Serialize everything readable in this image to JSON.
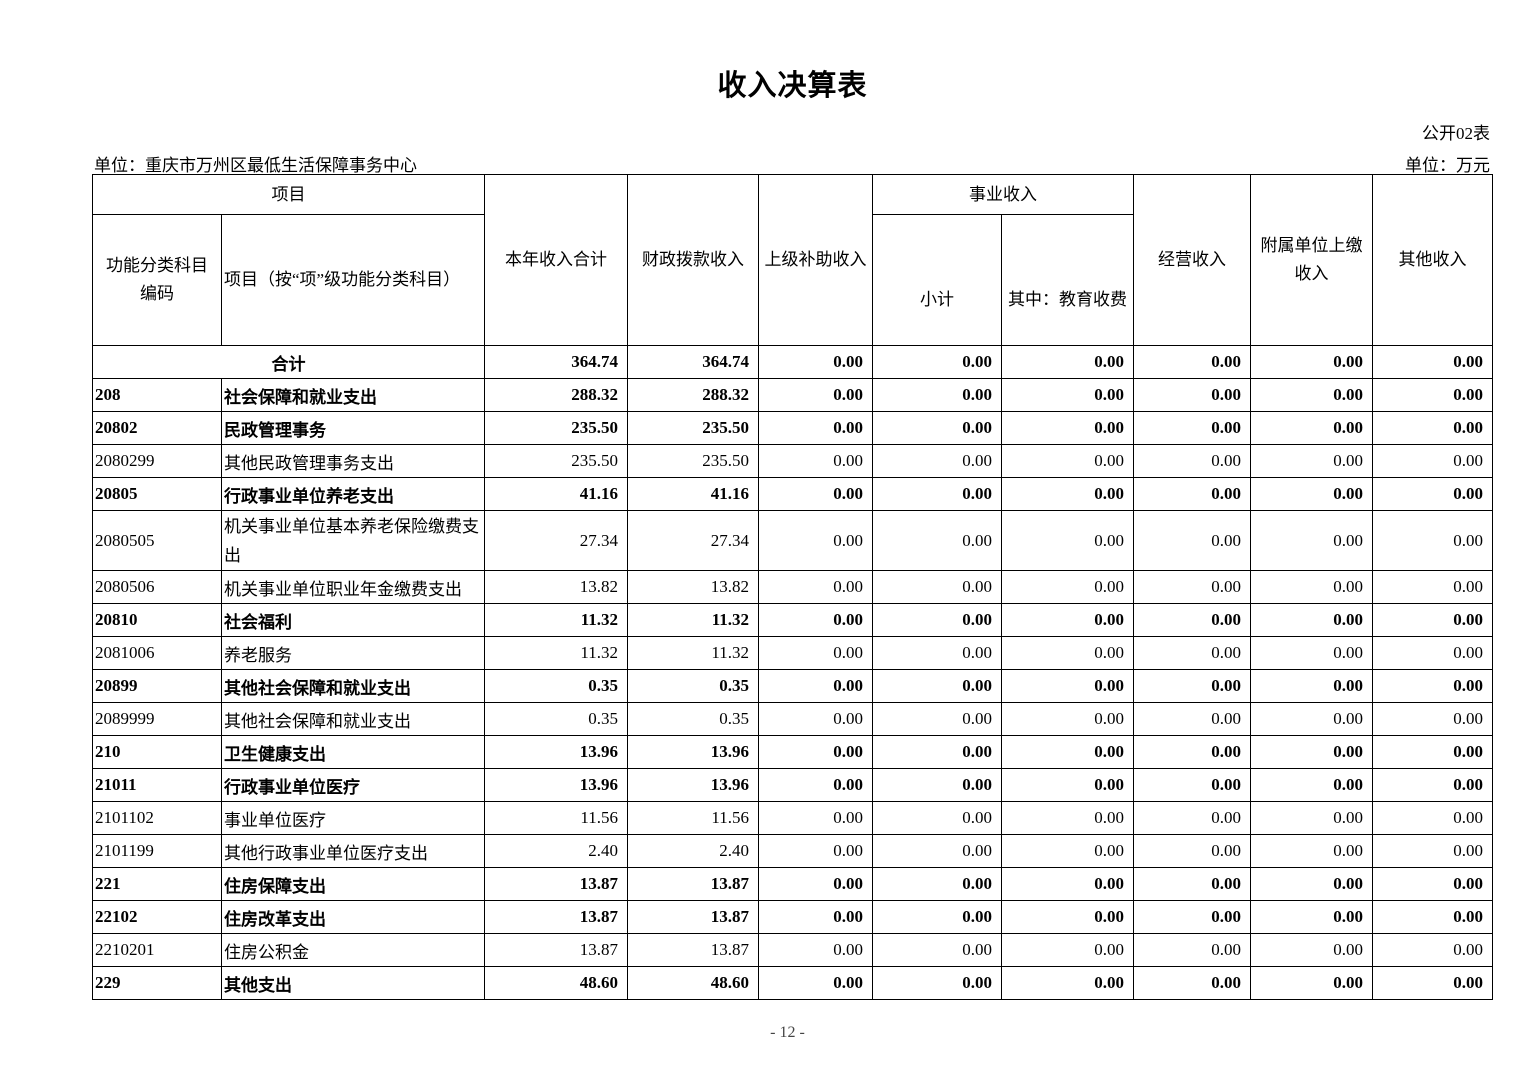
{
  "title": "收入决算表",
  "form_number": "公开02表",
  "unit_label": "单位：重庆市万州区最低生活保障事务中心",
  "currency_unit": "单位：万元",
  "headers": {
    "project": "项目",
    "code": "功能分类科目编码",
    "name": "项目（按“项”级功能分类科目）",
    "total_income": "本年收入合计",
    "fiscal": "财政拨款收入",
    "superior_subsidy": "上级补助收入",
    "business_income": "事业收入",
    "subtotal": "小计",
    "education_fees": "其中：教育收费",
    "operating": "经营收入",
    "affiliated": "附属单位上缴收入",
    "other": "其他收入"
  },
  "total_row": {
    "label": "合计",
    "values": [
      "364.74",
      "364.74",
      "0.00",
      "0.00",
      "0.00",
      "0.00",
      "0.00",
      "0.00"
    ]
  },
  "rows": [
    {
      "code": "208",
      "name": "社会保障和就业支出",
      "bold": true,
      "values": [
        "288.32",
        "288.32",
        "0.00",
        "0.00",
        "0.00",
        "0.00",
        "0.00",
        "0.00"
      ]
    },
    {
      "code": "20802",
      "name": "民政管理事务",
      "bold": true,
      "values": [
        "235.50",
        "235.50",
        "0.00",
        "0.00",
        "0.00",
        "0.00",
        "0.00",
        "0.00"
      ]
    },
    {
      "code": "2080299",
      "name": "其他民政管理事务支出",
      "bold": false,
      "values": [
        "235.50",
        "235.50",
        "0.00",
        "0.00",
        "0.00",
        "0.00",
        "0.00",
        "0.00"
      ]
    },
    {
      "code": "20805",
      "name": "行政事业单位养老支出",
      "bold": true,
      "values": [
        "41.16",
        "41.16",
        "0.00",
        "0.00",
        "0.00",
        "0.00",
        "0.00",
        "0.00"
      ]
    },
    {
      "code": "2080505",
      "name": "机关事业单位基本养老保险缴费支出",
      "bold": false,
      "tall": true,
      "values": [
        "27.34",
        "27.34",
        "0.00",
        "0.00",
        "0.00",
        "0.00",
        "0.00",
        "0.00"
      ]
    },
    {
      "code": "2080506",
      "name": "机关事业单位职业年金缴费支出",
      "bold": false,
      "values": [
        "13.82",
        "13.82",
        "0.00",
        "0.00",
        "0.00",
        "0.00",
        "0.00",
        "0.00"
      ]
    },
    {
      "code": "20810",
      "name": "社会福利",
      "bold": true,
      "values": [
        "11.32",
        "11.32",
        "0.00",
        "0.00",
        "0.00",
        "0.00",
        "0.00",
        "0.00"
      ]
    },
    {
      "code": "2081006",
      "name": "养老服务",
      "bold": false,
      "values": [
        "11.32",
        "11.32",
        "0.00",
        "0.00",
        "0.00",
        "0.00",
        "0.00",
        "0.00"
      ]
    },
    {
      "code": "20899",
      "name": "其他社会保障和就业支出",
      "bold": true,
      "values": [
        "0.35",
        "0.35",
        "0.00",
        "0.00",
        "0.00",
        "0.00",
        "0.00",
        "0.00"
      ]
    },
    {
      "code": "2089999",
      "name": "其他社会保障和就业支出",
      "bold": false,
      "values": [
        "0.35",
        "0.35",
        "0.00",
        "0.00",
        "0.00",
        "0.00",
        "0.00",
        "0.00"
      ]
    },
    {
      "code": "210",
      "name": "卫生健康支出",
      "bold": true,
      "values": [
        "13.96",
        "13.96",
        "0.00",
        "0.00",
        "0.00",
        "0.00",
        "0.00",
        "0.00"
      ]
    },
    {
      "code": "21011",
      "name": "行政事业单位医疗",
      "bold": true,
      "values": [
        "13.96",
        "13.96",
        "0.00",
        "0.00",
        "0.00",
        "0.00",
        "0.00",
        "0.00"
      ]
    },
    {
      "code": "2101102",
      "name": "事业单位医疗",
      "bold": false,
      "values": [
        "11.56",
        "11.56",
        "0.00",
        "0.00",
        "0.00",
        "0.00",
        "0.00",
        "0.00"
      ]
    },
    {
      "code": "2101199",
      "name": "其他行政事业单位医疗支出",
      "bold": false,
      "values": [
        "2.40",
        "2.40",
        "0.00",
        "0.00",
        "0.00",
        "0.00",
        "0.00",
        "0.00"
      ]
    },
    {
      "code": "221",
      "name": "住房保障支出",
      "bold": true,
      "values": [
        "13.87",
        "13.87",
        "0.00",
        "0.00",
        "0.00",
        "0.00",
        "0.00",
        "0.00"
      ]
    },
    {
      "code": "22102",
      "name": "住房改革支出",
      "bold": true,
      "values": [
        "13.87",
        "13.87",
        "0.00",
        "0.00",
        "0.00",
        "0.00",
        "0.00",
        "0.00"
      ]
    },
    {
      "code": "2210201",
      "name": "住房公积金",
      "bold": false,
      "values": [
        "13.87",
        "13.87",
        "0.00",
        "0.00",
        "0.00",
        "0.00",
        "0.00",
        "0.00"
      ]
    },
    {
      "code": "229",
      "name": "其他支出",
      "bold": true,
      "values": [
        "48.60",
        "48.60",
        "0.00",
        "0.00",
        "0.00",
        "0.00",
        "0.00",
        "0.00"
      ]
    }
  ],
  "page_number": "- 12 -"
}
